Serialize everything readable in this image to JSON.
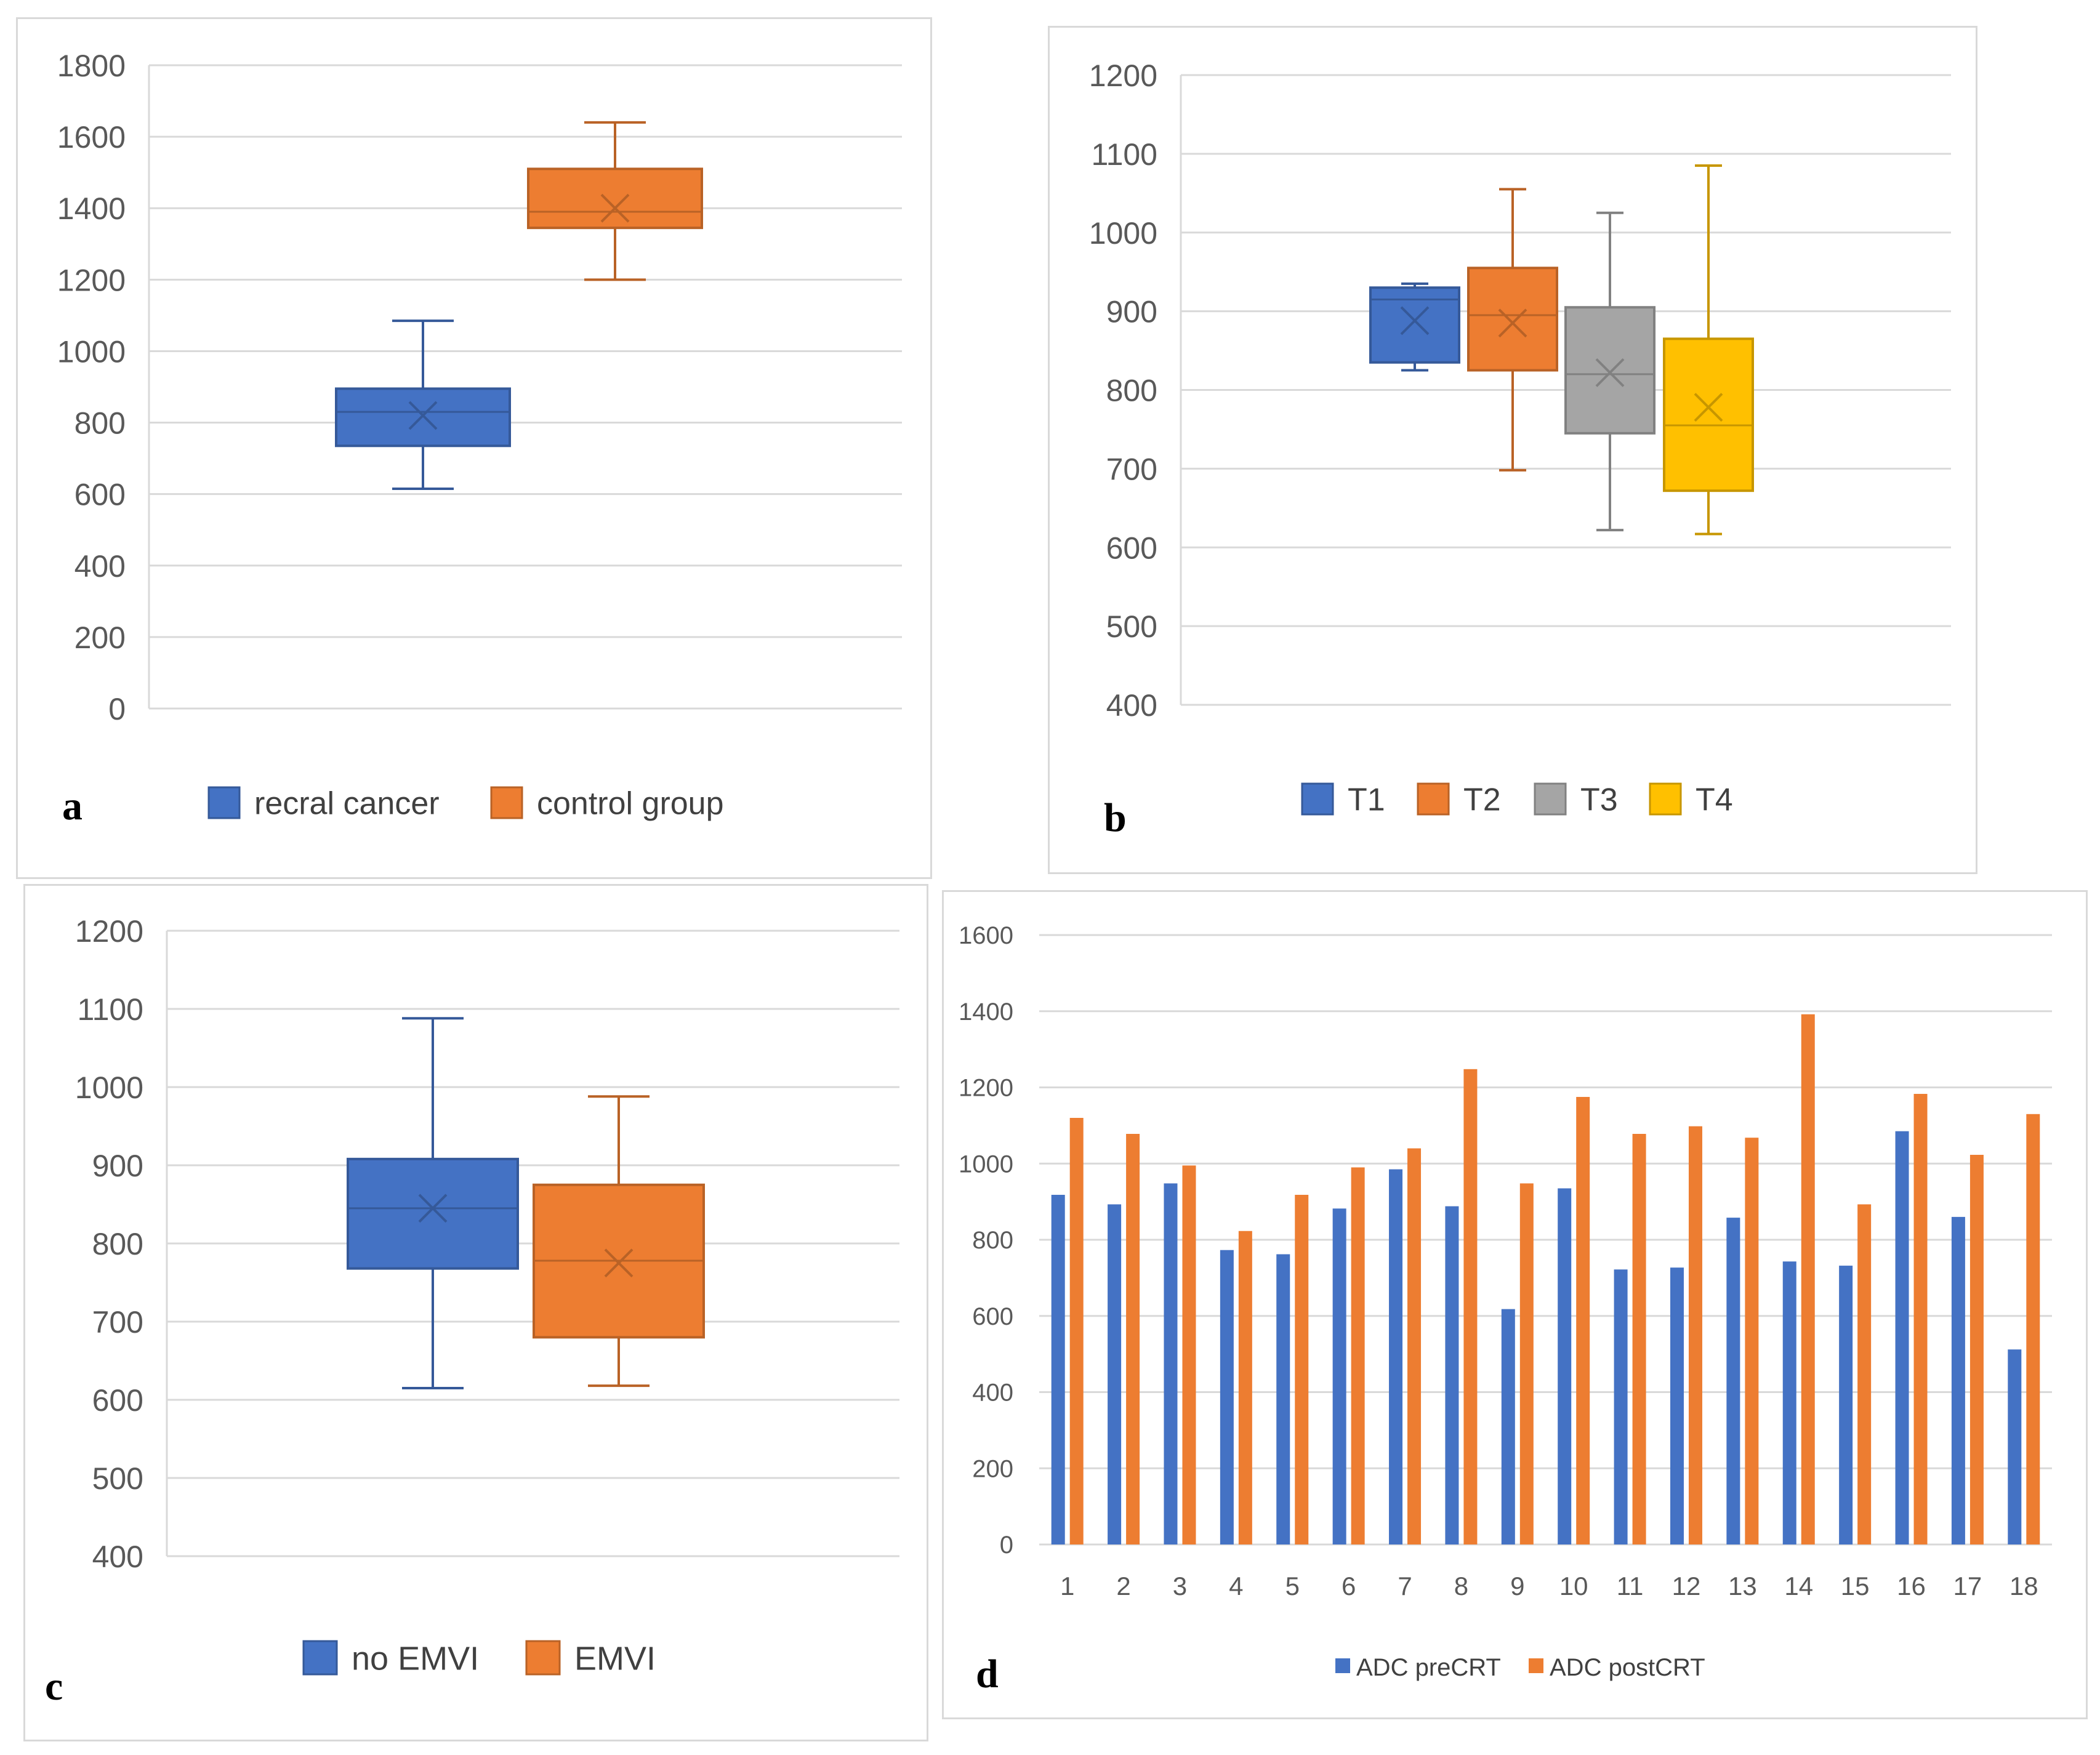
{
  "chart_data": [
    {
      "type": "box",
      "panel_label": "a",
      "ylim": [
        0,
        1800
      ],
      "yticks": [
        "0",
        "200",
        "400",
        "600",
        "800",
        "1000",
        "1200",
        "1400",
        "1600",
        "1800"
      ],
      "series": [
        {
          "name": "recral cancer",
          "color": "#4472c4",
          "min": 615,
          "q1": 735,
          "median": 830,
          "q3": 895,
          "max": 1085,
          "mean": 820
        },
        {
          "name": "control group",
          "color": "#ed7d31",
          "min": 1200,
          "q1": 1345,
          "median": 1390,
          "q3": 1510,
          "max": 1640,
          "mean": 1400
        }
      ]
    },
    {
      "type": "box",
      "panel_label": "b",
      "ylim": [
        400,
        1200
      ],
      "yticks": [
        "400",
        "500",
        "600",
        "700",
        "800",
        "900",
        "1000",
        "1100",
        "1200"
      ],
      "series": [
        {
          "name": "T1",
          "color": "#4472c4",
          "min": 825,
          "q1": 835,
          "median": 915,
          "q3": 930,
          "max": 935,
          "mean": 888
        },
        {
          "name": "T2",
          "color": "#ed7d31",
          "min": 698,
          "q1": 825,
          "median": 895,
          "q3": 955,
          "max": 1055,
          "mean": 885
        },
        {
          "name": "T3",
          "color": "#a5a5a5",
          "min": 622,
          "q1": 745,
          "median": 820,
          "q3": 905,
          "max": 1025,
          "mean": 822
        },
        {
          "name": "T4",
          "color": "#ffc000",
          "min": 617,
          "q1": 672,
          "median": 755,
          "q3": 865,
          "max": 1085,
          "mean": 778
        }
      ]
    },
    {
      "type": "box",
      "panel_label": "c",
      "ylim": [
        400,
        1200
      ],
      "yticks": [
        "400",
        "500",
        "600",
        "700",
        "800",
        "900",
        "1000",
        "1100",
        "1200"
      ],
      "series": [
        {
          "name": "no EMVI",
          "color": "#4472c4",
          "min": 615,
          "q1": 768,
          "median": 845,
          "q3": 908,
          "max": 1088,
          "mean": 845
        },
        {
          "name": "EMVI",
          "color": "#ed7d31",
          "min": 618,
          "q1": 680,
          "median": 778,
          "q3": 875,
          "max": 988,
          "mean": 775
        }
      ]
    },
    {
      "type": "bar",
      "panel_label": "d",
      "ylim": [
        0,
        1600
      ],
      "yticks": [
        "0",
        "200",
        "400",
        "600",
        "800",
        "1000",
        "1200",
        "1400",
        "1600"
      ],
      "categories": [
        "1",
        "2",
        "3",
        "4",
        "5",
        "6",
        "7",
        "8",
        "9",
        "10",
        "11",
        "12",
        "13",
        "14",
        "15",
        "16",
        "17",
        "18"
      ],
      "series": [
        {
          "name": "ADC preCRT",
          "color": "#4472c4",
          "values": [
            918,
            893,
            948,
            773,
            762,
            882,
            985,
            888,
            618,
            935,
            722,
            727,
            858,
            743,
            732,
            1085,
            860,
            512
          ]
        },
        {
          "name": "ADC postCRT",
          "color": "#ed7d31",
          "values": [
            1120,
            1078,
            995,
            823,
            918,
            990,
            1040,
            1248,
            948,
            1175,
            1078,
            1098,
            1068,
            1392,
            893,
            1183,
            1023,
            1130
          ]
        }
      ]
    }
  ]
}
